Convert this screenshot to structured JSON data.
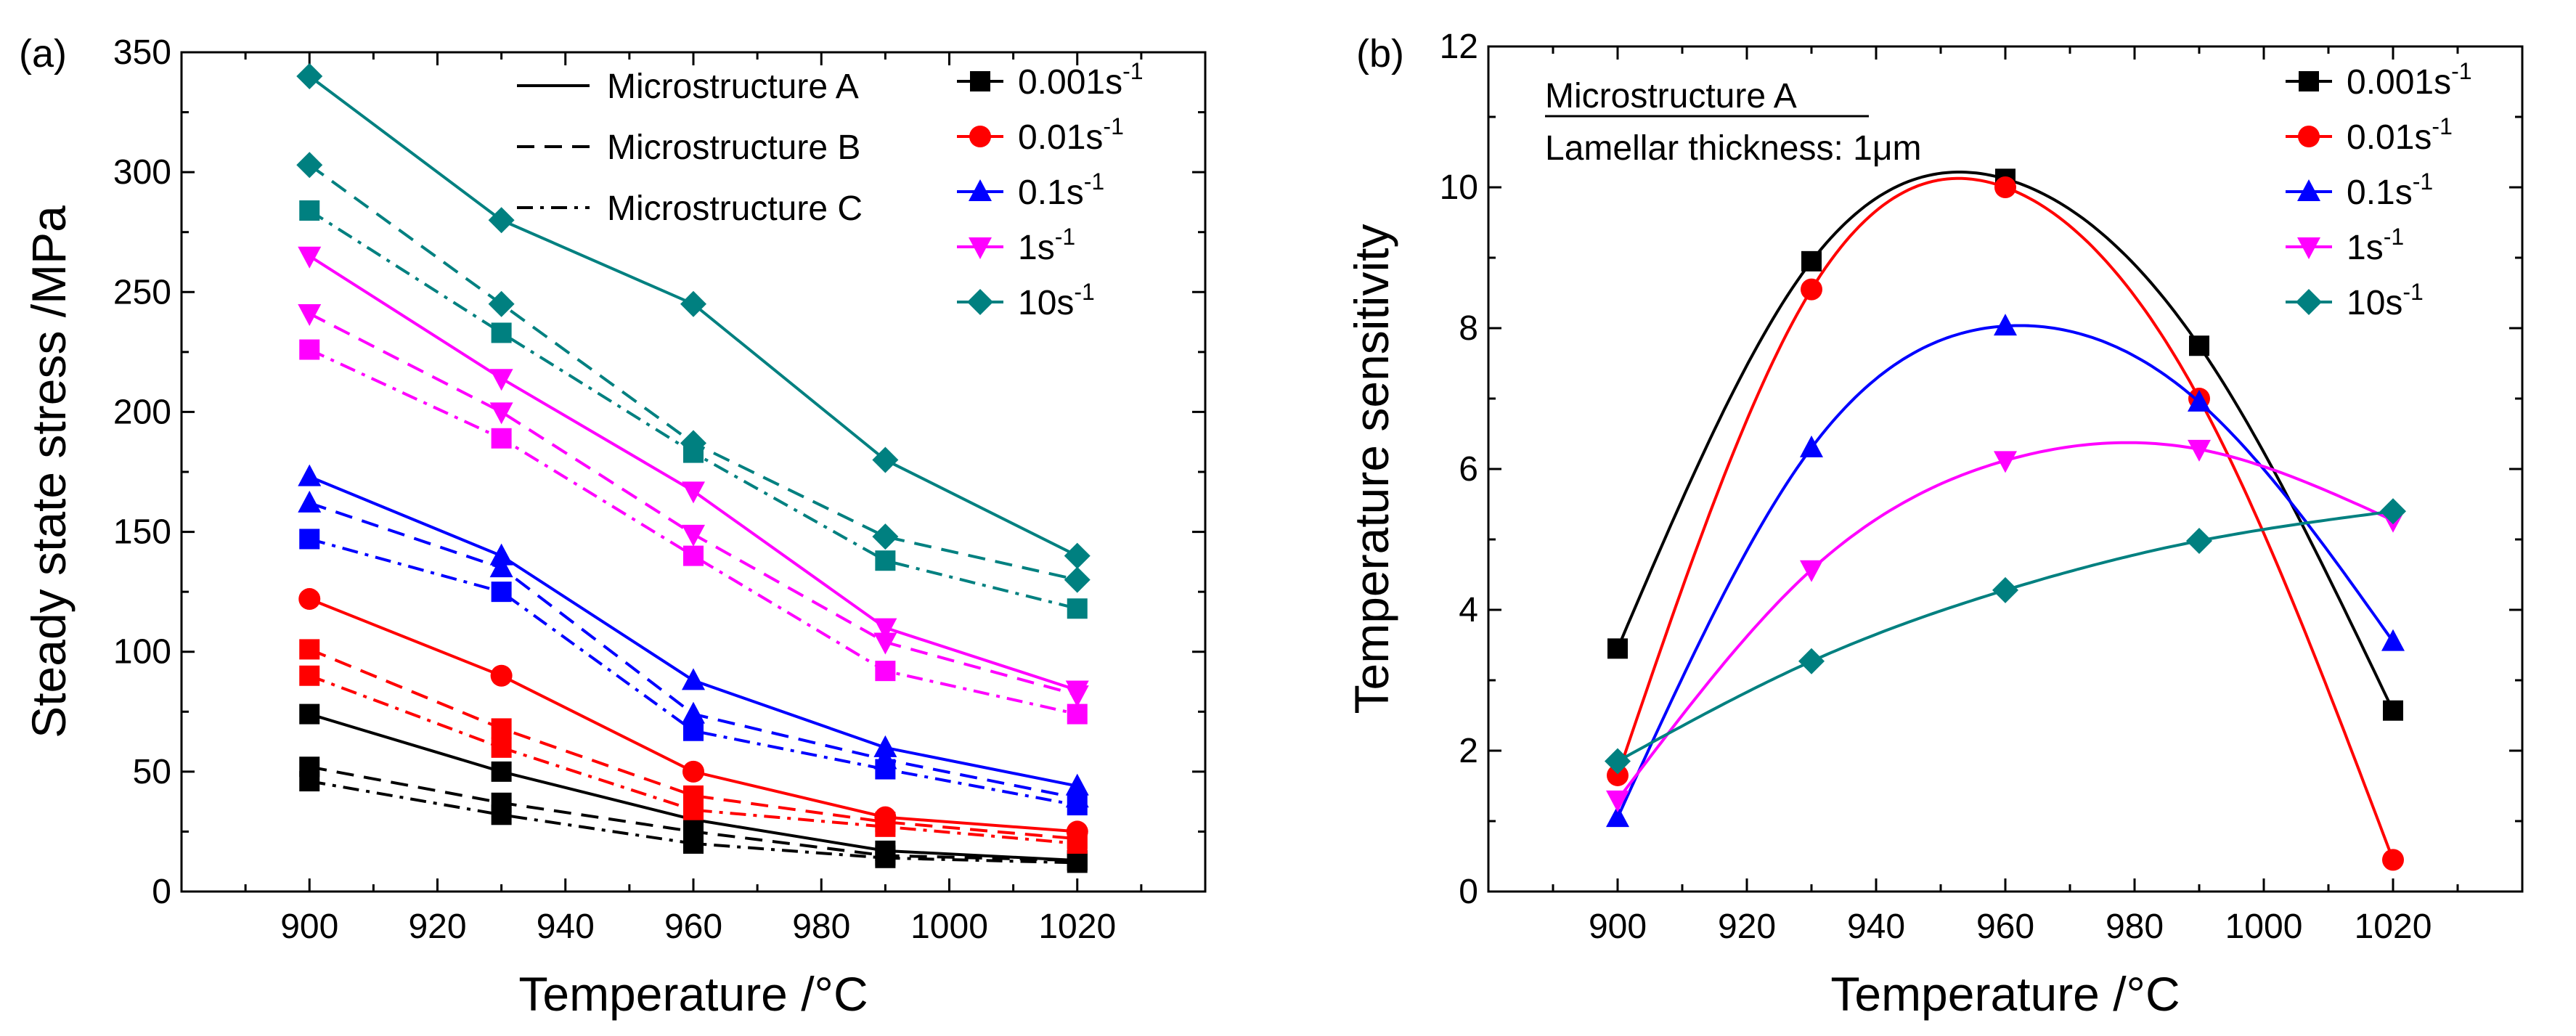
{
  "chart_data": [
    {
      "type": "line",
      "panel_label": "(a)",
      "xlabel": "Temperature /°C",
      "ylabel": "Steady state stress /MPa",
      "x": [
        900,
        930,
        960,
        990,
        1020
      ],
      "xlim": [
        880,
        1040
      ],
      "ylim": [
        0,
        350
      ],
      "xticks": [
        "900",
        "920",
        "940",
        "960",
        "980",
        "1000",
        "1020"
      ],
      "yticks": [
        "0",
        "50",
        "100",
        "150",
        "200",
        "250",
        "300",
        "350"
      ],
      "linestyle_legend": [
        {
          "label": "Microstructure A",
          "style": "solid"
        },
        {
          "label": "Microstructure B",
          "style": "dashed"
        },
        {
          "label": "Microstructure C",
          "style": "dashdot"
        }
      ],
      "legend": [
        {
          "base": "0.001s",
          "sup": "-1",
          "color": "#000000",
          "marker": "square"
        },
        {
          "base": "0.01s",
          "sup": "-1",
          "color": "#ff0000",
          "marker": "circle"
        },
        {
          "base": "0.1s",
          "sup": "-1",
          "color": "#0000ff",
          "marker": "triangle-up"
        },
        {
          "base": "1s",
          "sup": "-1",
          "color": "#ff00ff",
          "marker": "triangle-down"
        },
        {
          "base": "10s",
          "sup": "-1",
          "color": "#008080",
          "marker": "diamond"
        }
      ],
      "series": [
        {
          "name": "0.001s-1 A",
          "rate": "0.001s-1",
          "microstructure": "A",
          "color": "#000000",
          "marker": "square",
          "style": "solid",
          "values": [
            74,
            50,
            30,
            17,
            13
          ]
        },
        {
          "name": "0.001s-1 B",
          "rate": "0.001s-1",
          "microstructure": "B",
          "color": "#000000",
          "marker": "square",
          "style": "dashed",
          "values": [
            52,
            37,
            25,
            15,
            13
          ]
        },
        {
          "name": "0.001s-1 C",
          "rate": "0.001s-1",
          "microstructure": "C",
          "color": "#000000",
          "marker": "square",
          "style": "dashdot",
          "values": [
            46,
            32,
            20,
            14,
            12
          ]
        },
        {
          "name": "0.01s-1 A",
          "rate": "0.01s-1",
          "microstructure": "A",
          "color": "#ff0000",
          "marker": "circle",
          "style": "solid",
          "values": [
            122,
            90,
            50,
            31,
            25
          ]
        },
        {
          "name": "0.01s-1 B",
          "rate": "0.01s-1",
          "microstructure": "B",
          "color": "#ff0000",
          "marker": "square",
          "style": "dashed",
          "values": [
            101,
            68,
            40,
            29,
            22
          ]
        },
        {
          "name": "0.01s-1 C",
          "rate": "0.01s-1",
          "microstructure": "C",
          "color": "#ff0000",
          "marker": "square",
          "style": "dashdot",
          "values": [
            90,
            60,
            34,
            27,
            20
          ]
        },
        {
          "name": "0.1s-1 A",
          "rate": "0.1s-1",
          "microstructure": "A",
          "color": "#0000ff",
          "marker": "triangle-up",
          "style": "solid",
          "values": [
            173,
            140,
            88,
            60,
            44
          ]
        },
        {
          "name": "0.1s-1 B",
          "rate": "0.1s-1",
          "microstructure": "B",
          "color": "#0000ff",
          "marker": "triangle-up",
          "style": "dashed",
          "values": [
            162,
            135,
            74,
            55,
            39
          ]
        },
        {
          "name": "0.1s-1 C",
          "rate": "0.1s-1",
          "microstructure": "C",
          "color": "#0000ff",
          "marker": "square",
          "style": "dashdot",
          "values": [
            147,
            125,
            67,
            51,
            36
          ]
        },
        {
          "name": "1s-1 A",
          "rate": "1s-1",
          "microstructure": "A",
          "color": "#ff00ff",
          "marker": "triangle-down",
          "style": "solid",
          "values": [
            265,
            214,
            167,
            110,
            84
          ]
        },
        {
          "name": "1s-1 B",
          "rate": "1s-1",
          "microstructure": "B",
          "color": "#ff00ff",
          "marker": "triangle-down",
          "style": "dashed",
          "values": [
            241,
            200,
            149,
            104,
            82
          ]
        },
        {
          "name": "1s-1 C",
          "rate": "1s-1",
          "microstructure": "C",
          "color": "#ff00ff",
          "marker": "square",
          "style": "dashdot",
          "values": [
            226,
            189,
            140,
            92,
            74
          ]
        },
        {
          "name": "10s-1 A",
          "rate": "10s-1",
          "microstructure": "A",
          "color": "#008080",
          "marker": "diamond",
          "style": "solid",
          "values": [
            340,
            280,
            245,
            180,
            140
          ]
        },
        {
          "name": "10s-1 B",
          "rate": "10s-1",
          "microstructure": "B",
          "color": "#008080",
          "marker": "diamond",
          "style": "dashed",
          "values": [
            303,
            245,
            187,
            148,
            130
          ]
        },
        {
          "name": "10s-1 C",
          "rate": "10s-1",
          "microstructure": "C",
          "color": "#008080",
          "marker": "square",
          "style": "dashdot",
          "values": [
            284,
            233,
            183,
            138,
            118
          ]
        }
      ]
    },
    {
      "type": "line",
      "panel_label": "(b)",
      "xlabel": "Temperature /°C",
      "ylabel": "Temperature sensitivity",
      "x": [
        900,
        930,
        960,
        990,
        1020
      ],
      "xlim": [
        880,
        1040
      ],
      "ylim": [
        0,
        12
      ],
      "xticks": [
        "900",
        "920",
        "940",
        "960",
        "980",
        "1000",
        "1020"
      ],
      "yticks": [
        "0",
        "2",
        "4",
        "6",
        "8",
        "10",
        "12"
      ],
      "annotation_title": "Microstructure A",
      "annotation_line": "Lamellar thickness: 1μm",
      "legend": [
        {
          "base": "0.001s",
          "sup": "-1",
          "color": "#000000",
          "marker": "square"
        },
        {
          "base": "0.01s",
          "sup": "-1",
          "color": "#ff0000",
          "marker": "circle"
        },
        {
          "base": "0.1s",
          "sup": "-1",
          "color": "#0000ff",
          "marker": "triangle-up"
        },
        {
          "base": "1s",
          "sup": "-1",
          "color": "#ff00ff",
          "marker": "triangle-down"
        },
        {
          "base": "10s",
          "sup": "-1",
          "color": "#008080",
          "marker": "diamond"
        }
      ],
      "series": [
        {
          "name": "0.001s-1",
          "color": "#000000",
          "marker": "square",
          "values": [
            3.45,
            8.95,
            10.12,
            7.75,
            2.57
          ]
        },
        {
          "name": "0.01s-1",
          "color": "#ff0000",
          "marker": "circle",
          "values": [
            1.65,
            8.55,
            10.0,
            7.0,
            0.45
          ]
        },
        {
          "name": "0.1s-1",
          "color": "#0000ff",
          "marker": "triangle-up",
          "values": [
            1.05,
            6.3,
            8.03,
            6.95,
            3.55
          ]
        },
        {
          "name": "1s-1",
          "color": "#ff00ff",
          "marker": "triangle-down",
          "values": [
            1.3,
            4.57,
            6.12,
            6.28,
            5.27
          ]
        },
        {
          "name": "10s-1",
          "color": "#008080",
          "marker": "diamond",
          "values": [
            1.85,
            3.27,
            4.28,
            4.98,
            5.4
          ]
        }
      ]
    }
  ]
}
